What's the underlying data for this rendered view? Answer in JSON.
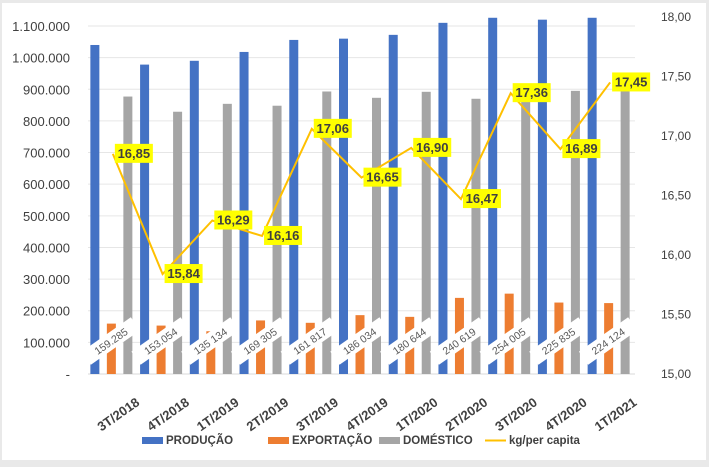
{
  "chart_data": {
    "type": "bar",
    "title": "",
    "xlabel": "",
    "ylabel": "",
    "categories": [
      "3T/2018",
      "4T/2018",
      "1T/2019",
      "2T/2019",
      "3T/2019",
      "4T/2019",
      "1T/2020",
      "2T/2020",
      "3T/2020",
      "4T/2020",
      "1T/2021"
    ],
    "series": [
      {
        "name": "PRODUÇÃO",
        "type": "bar",
        "axis": "left",
        "color": "#4472C4",
        "values": [
          1040000,
          978000,
          990000,
          1018000,
          1056000,
          1060000,
          1072000,
          1110000,
          1126000,
          1120000,
          1126000
        ]
      },
      {
        "name": "EXPORTAÇÃO",
        "type": "bar",
        "axis": "left",
        "color": "#ED7D31",
        "values": [
          159285,
          153054,
          135134,
          169305,
          161817,
          186034,
          180644,
          240619,
          254005,
          225835,
          224124
        ],
        "labels": [
          "159.285",
          "153.054",
          "135 134",
          "169 305",
          "161 817",
          "186 034",
          "180 644",
          "240 619",
          "254 005",
          "225 835",
          "224 124"
        ]
      },
      {
        "name": "DOMÉSTICO",
        "type": "bar",
        "axis": "left",
        "color": "#A5A5A5",
        "values": [
          877000,
          829000,
          854000,
          848000,
          893000,
          873000,
          892000,
          870000,
          880000,
          895000,
          921000
        ]
      },
      {
        "name": "kg/per capita",
        "type": "line",
        "axis": "right",
        "color": "#FFC000",
        "values": [
          16.85,
          15.84,
          16.29,
          16.16,
          17.06,
          16.65,
          16.9,
          16.47,
          17.36,
          16.89,
          17.45
        ],
        "labels": [
          "16,85",
          "15,84",
          "16,29",
          "16,16",
          "17,06",
          "16,65",
          "16,90",
          "16,47",
          "17,36",
          "16,89",
          "17,45"
        ]
      }
    ],
    "y_left": {
      "ylim": [
        0,
        1100000
      ],
      "ticks": [
        "-",
        "100.000",
        "200.000",
        "300.000",
        "400.000",
        "500.000",
        "600.000",
        "700.000",
        "800.000",
        "900.000",
        "1.000.000",
        "1.100.000"
      ]
    },
    "y_right": {
      "ylim": [
        15.0,
        18.0
      ],
      "ticks": [
        "15,00",
        "15,50",
        "16,00",
        "16,50",
        "17,00",
        "17,50",
        "18,00"
      ]
    },
    "grid": true,
    "legend": {
      "position": "bottom",
      "items": [
        {
          "label": "PRODUÇÃO",
          "kind": "box",
          "color": "#4472C4"
        },
        {
          "label": "EXPORTAÇÃO",
          "kind": "box",
          "color": "#ED7D31"
        },
        {
          "label": "DOMÉSTICO",
          "kind": "box",
          "color": "#A5A5A5"
        },
        {
          "label": "kg/per capita",
          "kind": "line",
          "color": "#FFC000"
        }
      ]
    },
    "label_box_color": "#FFFF00"
  }
}
